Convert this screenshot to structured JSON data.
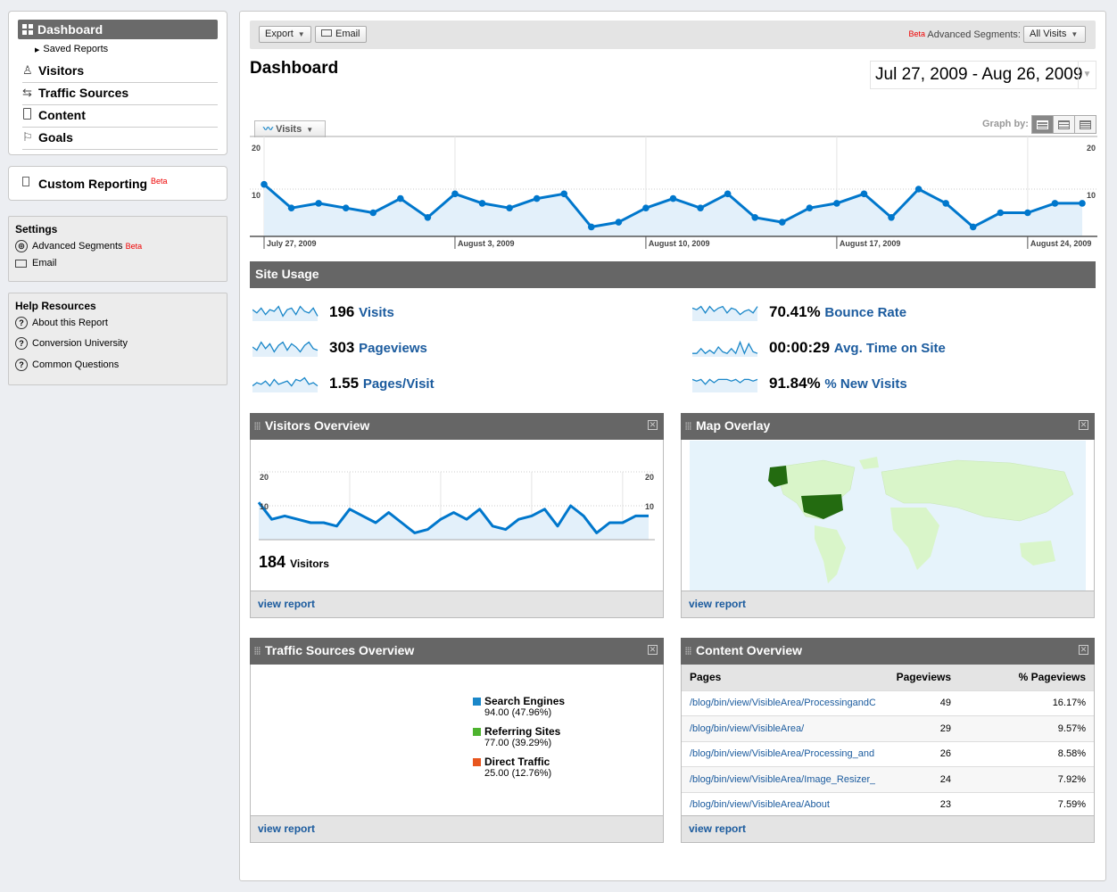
{
  "sidebar": {
    "dashboard": "Dashboard",
    "saved_reports": "Saved Reports",
    "nav": [
      {
        "label": "Visitors",
        "icon": "person-icon"
      },
      {
        "label": "Traffic Sources",
        "icon": "arrows-icon"
      },
      {
        "label": "Content",
        "icon": "page-icon"
      },
      {
        "label": "Goals",
        "icon": "flag-icon"
      }
    ],
    "custom_reporting": "Custom Reporting",
    "beta": "Beta",
    "settings": {
      "title": "Settings",
      "advanced_segments": "Advanced Segments",
      "email": "Email"
    },
    "help": {
      "title": "Help Resources",
      "items": [
        "About this Report",
        "Conversion University",
        "Common Questions"
      ]
    }
  },
  "toolbar": {
    "export": "Export",
    "email": "Email",
    "beta": "Beta",
    "segments_label": "Advanced Segments:",
    "segment_value": "All Visits"
  },
  "page_title": "Dashboard",
  "date_range": "Jul 27, 2009 - Aug 26, 2009",
  "graph": {
    "metric_tab": "Visits",
    "graph_by": "Graph by:"
  },
  "chart_data": [
    {
      "type": "area",
      "title": "Visits",
      "ylim": [
        0,
        20
      ],
      "yticks": [
        "20",
        "10"
      ],
      "xlabels": [
        "July 27, 2009",
        "August 3, 2009",
        "August 10, 2009",
        "August 17, 2009",
        "August 24, 2009"
      ],
      "xlabel_indices": [
        0,
        7,
        14,
        21,
        28
      ],
      "values": [
        11,
        6,
        7,
        6,
        5,
        8,
        4,
        9,
        7,
        6,
        8,
        9,
        2,
        3,
        6,
        8,
        6,
        9,
        4,
        3,
        6,
        7,
        9,
        4,
        10,
        7,
        2,
        5,
        5,
        7,
        7
      ]
    },
    {
      "type": "area",
      "title": "Visitors",
      "ylim": [
        0,
        20
      ],
      "yticks": [
        "20",
        "10"
      ],
      "values": [
        11,
        6,
        7,
        6,
        5,
        5,
        4,
        9,
        7,
        5,
        8,
        5,
        2,
        3,
        6,
        8,
        6,
        9,
        4,
        3,
        6,
        7,
        9,
        4,
        10,
        7,
        2,
        5,
        5,
        7,
        7
      ]
    },
    {
      "type": "pie",
      "title": "Traffic Sources Overview",
      "slices": [
        {
          "label": "Search Engines",
          "value": "94.00 (47.96%)",
          "color": "#1a87c9"
        },
        {
          "label": "Referring Sites",
          "value": "77.00 (39.29%)",
          "color": "#4db32e"
        },
        {
          "label": "Direct Traffic",
          "value": "25.00 (12.76%)",
          "color": "#e8561e"
        }
      ]
    }
  ],
  "site_usage": {
    "title": "Site Usage",
    "metrics": [
      {
        "value": "196",
        "label": "Visits",
        "spark": [
          6,
          4,
          7,
          3,
          6,
          5,
          8,
          2,
          6,
          7,
          3,
          8,
          5,
          4,
          7,
          2
        ]
      },
      {
        "value": "303",
        "label": "Pageviews",
        "spark": [
          5,
          3,
          8,
          4,
          7,
          2,
          6,
          8,
          3,
          7,
          5,
          2,
          6,
          8,
          4,
          3
        ]
      },
      {
        "value": "1.55",
        "label": "Pages/Visit",
        "spark": [
          3,
          5,
          4,
          6,
          3,
          7,
          4,
          5,
          6,
          3,
          7,
          6,
          8,
          4,
          5,
          3
        ]
      },
      {
        "value": "70.41%",
        "label": "Bounce Rate",
        "spark": [
          7,
          6,
          8,
          4,
          8,
          5,
          7,
          8,
          4,
          7,
          6,
          3,
          5,
          6,
          4,
          8
        ]
      },
      {
        "value": "00:00:29",
        "label": "Avg. Time on Site",
        "spark": [
          1,
          1,
          4,
          1,
          3,
          1,
          5,
          2,
          1,
          4,
          1,
          8,
          1,
          7,
          2,
          1
        ]
      },
      {
        "value": "91.84%",
        "label": "% New Visits",
        "spark": [
          7,
          6,
          7,
          4,
          7,
          5,
          7,
          7,
          7,
          6,
          7,
          5,
          7,
          7,
          6,
          7
        ]
      }
    ]
  },
  "visitors_overview": {
    "title": "Visitors Overview",
    "count": "184",
    "count_label": "Visitors",
    "view_report": "view report"
  },
  "map_overlay": {
    "title": "Map Overlay",
    "view_report": "view report"
  },
  "traffic_sources": {
    "title": "Traffic Sources Overview",
    "view_report": "view report"
  },
  "content_overview": {
    "title": "Content Overview",
    "columns": [
      "Pages",
      "Pageviews",
      "% Pageviews"
    ],
    "rows": [
      [
        "/blog/bin/view/VisibleArea/ProcessingandC",
        "49",
        "16.17%"
      ],
      [
        "/blog/bin/view/VisibleArea/",
        "29",
        "9.57%"
      ],
      [
        "/blog/bin/view/VisibleArea/Processing_and",
        "26",
        "8.58%"
      ],
      [
        "/blog/bin/view/VisibleArea/Image_Resizer_",
        "24",
        "7.92%"
      ],
      [
        "/blog/bin/view/VisibleArea/About",
        "23",
        "7.59%"
      ]
    ],
    "view_report": "view report"
  },
  "colors": {
    "accent": "#0077cc",
    "link": "#1b5b9e",
    "header": "#666666",
    "fill": "#e3f0fa"
  }
}
